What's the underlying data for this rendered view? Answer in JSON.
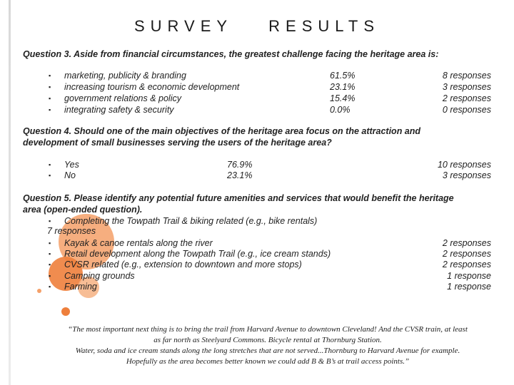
{
  "title_word_1": "SURVEY",
  "title_word_2": "RESULTS",
  "bullet": "▪",
  "q3": {
    "question": "Question 3. Aside from financial circumstances, the greatest challenge facing the heritage area is:",
    "items": [
      {
        "label": "marketing, publicity & branding",
        "percent": "61.5%",
        "responses": "8 responses"
      },
      {
        "label": "increasing tourism & economic development",
        "percent": "23.1%",
        "responses": "3 responses"
      },
      {
        "label": "government relations & policy",
        "percent": "15.4%",
        "responses": "2 responses"
      },
      {
        "label": "integrating safety & security",
        "percent": "0.0%",
        "responses": "0 responses"
      }
    ]
  },
  "q4": {
    "question_line1": "Question 4. Should one of the main objectives of the heritage area focus on the attraction and",
    "question_line2": "development of small businesses serving the users of the heritage area?",
    "items": [
      {
        "label": "Yes",
        "percent": "76.9%",
        "responses": "10 responses"
      },
      {
        "label": "No",
        "percent": "23.1%",
        "responses": "3 responses"
      }
    ]
  },
  "q5": {
    "question_line1": "Question 5. Please identify any potential future amenities and services that would benefit the heritage",
    "question_line2": "area (open-ended question).",
    "first_item": "Completing the Towpath Trail & biking related (e.g., bike rentals)",
    "first_item_responses": "7 responses",
    "items": [
      {
        "label": "Kayak & canoe rentals along the river",
        "responses": "2 responses"
      },
      {
        "label": "Retail development along the Towpath Trail (e.g., ice cream stands)",
        "responses": "2 responses"
      },
      {
        "label": "CVSR related (e.g., extension to downtown and more stops)",
        "responses": "2 responses"
      },
      {
        "label": "Camping grounds",
        "responses": "1 response"
      },
      {
        "label": "Farming",
        "responses": "1 response"
      }
    ]
  },
  "quote": {
    "line1": "“The most important next thing is to bring the trail from Harvard Avenue to downtown Cleveland! And the CVSR train, at least",
    "line2": "as far north as Steelyard Commons. Bicycle rental at Thornburg Station.",
    "line3": "Water, soda and ice cream stands along the long stretches that are not served...Thornburg to Harvard Avenue for example.",
    "line4": "Hopefully as the area becomes better known we could add B & B’s at trail access points.”"
  }
}
